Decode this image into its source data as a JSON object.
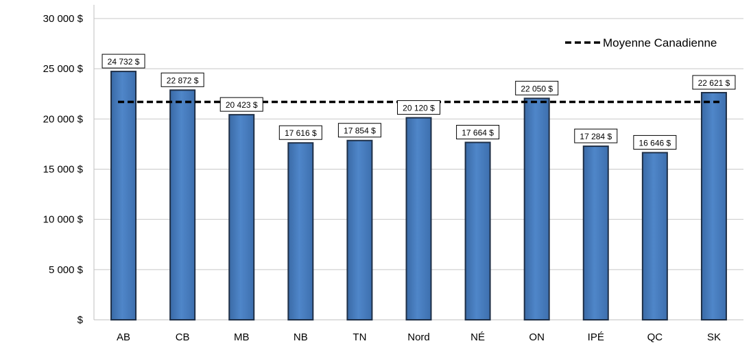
{
  "chart_data": {
    "type": "bar",
    "categories": [
      "AB",
      "CB",
      "MB",
      "NB",
      "TN",
      "Nord",
      "NÉ",
      "ON",
      "IPÉ",
      "QC",
      "SK"
    ],
    "values": [
      24732,
      22872,
      20423,
      17616,
      17854,
      20120,
      17664,
      22050,
      17284,
      16646,
      22621
    ],
    "data_labels": [
      "24 732 $",
      "22 872 $",
      "20 423 $",
      "17 616 $",
      "17 854 $",
      "20 120 $",
      "17 664 $",
      "22 050 $",
      "17 284 $",
      "16 646 $",
      "22 621 $"
    ],
    "reference_line": {
      "name": "Moyenne Canadienne",
      "value": 21700,
      "style": "dashed",
      "color": "#000000"
    },
    "y_ticks": [
      0,
      5000,
      10000,
      15000,
      20000,
      25000,
      30000
    ],
    "y_tick_labels": [
      "$",
      "5 000 $",
      "10 000 $",
      "15 000 $",
      "20 000 $",
      "25 000 $",
      "30 000 $"
    ],
    "ylim": [
      0,
      30000
    ],
    "title": "",
    "xlabel": "",
    "ylabel": "",
    "grid": true,
    "legend_position": "top-right",
    "bar_color": "#4a7ebb",
    "bar_edge_color": "#1f2f46"
  }
}
